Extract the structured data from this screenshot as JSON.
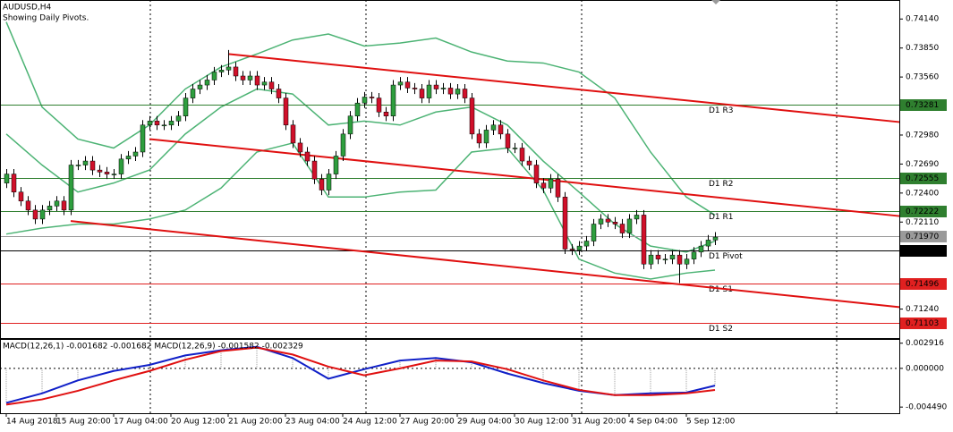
{
  "chart_data": [
    {
      "type": "candlestick",
      "title": "AUDUSD,H4",
      "subtitle": "Showing Daily Pivots.",
      "categories": [
        "14 Aug 2018",
        null,
        null,
        null,
        null,
        null,
        null,
        "15 Aug 20:00",
        null,
        null,
        null,
        null,
        null,
        null,
        null,
        "17 Aug 04:00",
        null,
        null,
        null,
        null,
        null,
        null,
        null,
        "20 Aug 12:00",
        null,
        null,
        null,
        null,
        null,
        null,
        null,
        "21 Aug 20:00",
        null,
        null,
        null,
        null,
        null,
        null,
        null,
        "23 Aug 04:00",
        null,
        null,
        null,
        null,
        null,
        null,
        null,
        "24 Aug 12:00",
        null,
        null,
        null,
        null,
        null,
        null,
        null,
        "27 Aug 20:00",
        null,
        null,
        null,
        null,
        null,
        null,
        null,
        "29 Aug 04:00",
        null,
        null,
        null,
        null,
        null,
        null,
        null,
        "30 Aug 12:00",
        null,
        null,
        null,
        null,
        null,
        null,
        null,
        "31 Aug 20:00",
        null,
        null,
        null,
        null,
        null,
        null,
        null,
        "4 Sep 04:00",
        null,
        null,
        null,
        null,
        null,
        null,
        null,
        "5 Sep 12:00",
        null,
        null,
        null,
        null
      ],
      "open": [
        0.725,
        0.7259,
        0.7241,
        0.7232,
        0.7223,
        0.7214,
        0.7223,
        0.7227,
        0.7232,
        0.7223,
        0.7268,
        0.7268,
        0.7272,
        0.7263,
        0.7261,
        0.7259,
        0.7259,
        0.7274,
        0.7277,
        0.7281,
        0.7308,
        0.7312,
        0.7308,
        0.7308,
        0.7312,
        0.7317,
        0.7335,
        0.7344,
        0.7348,
        0.7353,
        0.7361,
        0.7363,
        0.7366,
        0.7357,
        0.7353,
        0.7357,
        0.7348,
        0.7351,
        0.7344,
        0.7335,
        0.7308,
        0.729,
        0.7281,
        0.7272,
        0.7254,
        0.7243,
        0.7259,
        0.7277,
        0.7299,
        0.7317,
        0.733,
        0.7336,
        0.7335,
        0.7321,
        0.7317,
        0.7348,
        0.7351,
        0.7345,
        0.7344,
        0.7335,
        0.7348,
        0.7344,
        0.7345,
        0.7339,
        0.7344,
        0.7335,
        0.7299,
        0.729,
        0.7303,
        0.7308,
        0.7299,
        0.7285,
        0.7285,
        0.7272,
        0.7268,
        0.725,
        0.7245,
        0.7254,
        0.7236,
        0.7184,
        0.7183,
        0.7187,
        0.7192,
        0.7209,
        0.7214,
        0.7211,
        0.7209,
        0.72,
        0.7214,
        0.7218,
        0.7169,
        0.7178,
        0.7174,
        0.7174,
        0.7178,
        0.7169,
        0.7174,
        0.7181,
        0.7187,
        0.7193
      ],
      "high": [
        0.7264,
        0.7264,
        0.7246,
        0.7237,
        0.7228,
        0.7228,
        0.7232,
        0.7237,
        0.7237,
        0.7273,
        0.7273,
        0.7277,
        0.7277,
        0.7268,
        0.7266,
        0.7264,
        0.7279,
        0.7282,
        0.7286,
        0.7313,
        0.7317,
        0.7317,
        0.7313,
        0.7317,
        0.7322,
        0.734,
        0.7349,
        0.7353,
        0.7358,
        0.7366,
        0.7368,
        0.7383,
        0.7371,
        0.7362,
        0.7362,
        0.7362,
        0.7356,
        0.7356,
        0.7349,
        0.734,
        0.7313,
        0.7295,
        0.7286,
        0.7277,
        0.7259,
        0.7264,
        0.7282,
        0.7304,
        0.7322,
        0.7335,
        0.7341,
        0.7341,
        0.734,
        0.7326,
        0.7353,
        0.7356,
        0.7356,
        0.735,
        0.7349,
        0.7353,
        0.7353,
        0.735,
        0.735,
        0.7349,
        0.7349,
        0.734,
        0.7304,
        0.7308,
        0.7313,
        0.7313,
        0.7304,
        0.729,
        0.729,
        0.7277,
        0.7273,
        0.7255,
        0.7259,
        0.7259,
        0.7241,
        0.7189,
        0.7192,
        0.7197,
        0.7214,
        0.7219,
        0.7219,
        0.7216,
        0.7214,
        0.7219,
        0.7223,
        0.7223,
        0.7183,
        0.7183,
        0.7179,
        0.7183,
        0.7183,
        0.7179,
        0.7186,
        0.7192,
        0.7198,
        0.7201
      ],
      "low": [
        0.7245,
        0.7236,
        0.7227,
        0.7218,
        0.7209,
        0.7209,
        0.7218,
        0.7222,
        0.7218,
        0.7218,
        0.7263,
        0.7263,
        0.7258,
        0.7256,
        0.7254,
        0.7254,
        0.7254,
        0.7269,
        0.7272,
        0.7276,
        0.7303,
        0.7303,
        0.7303,
        0.7303,
        0.7307,
        0.7312,
        0.733,
        0.7339,
        0.7343,
        0.7348,
        0.7356,
        0.7358,
        0.7352,
        0.7348,
        0.7348,
        0.7343,
        0.7343,
        0.7339,
        0.733,
        0.7303,
        0.7285,
        0.7276,
        0.7267,
        0.7249,
        0.7238,
        0.7238,
        0.7254,
        0.7272,
        0.7294,
        0.7312,
        0.7325,
        0.733,
        0.7316,
        0.7312,
        0.7312,
        0.7343,
        0.734,
        0.7339,
        0.733,
        0.733,
        0.7339,
        0.7339,
        0.7334,
        0.7334,
        0.733,
        0.7294,
        0.7285,
        0.7285,
        0.7298,
        0.7294,
        0.728,
        0.728,
        0.7267,
        0.7263,
        0.7245,
        0.724,
        0.724,
        0.7231,
        0.7179,
        0.7178,
        0.7178,
        0.7182,
        0.7187,
        0.7204,
        0.7206,
        0.7204,
        0.7195,
        0.7195,
        0.7209,
        0.7164,
        0.7164,
        0.7169,
        0.7169,
        0.7169,
        0.715,
        0.7164,
        0.7169,
        0.7176,
        0.7182,
        0.7188
      ],
      "close": [
        0.7259,
        0.7241,
        0.7232,
        0.7223,
        0.7214,
        0.7223,
        0.7227,
        0.7232,
        0.7223,
        0.7268,
        0.7268,
        0.7272,
        0.7263,
        0.7261,
        0.7259,
        0.7259,
        0.7274,
        0.7277,
        0.7281,
        0.7308,
        0.7312,
        0.7308,
        0.7308,
        0.7312,
        0.7317,
        0.7335,
        0.7344,
        0.7348,
        0.7353,
        0.7361,
        0.7363,
        0.7366,
        0.7357,
        0.7353,
        0.7357,
        0.7348,
        0.7351,
        0.7344,
        0.7335,
        0.7308,
        0.729,
        0.7281,
        0.7272,
        0.7254,
        0.7243,
        0.7259,
        0.7277,
        0.7299,
        0.7317,
        0.733,
        0.7336,
        0.7335,
        0.7321,
        0.7317,
        0.7348,
        0.7351,
        0.7345,
        0.7344,
        0.7335,
        0.7348,
        0.7344,
        0.7345,
        0.7339,
        0.7344,
        0.7335,
        0.7299,
        0.729,
        0.7303,
        0.7308,
        0.7299,
        0.7285,
        0.7285,
        0.7272,
        0.7268,
        0.725,
        0.7245,
        0.7254,
        0.7236,
        0.7184,
        0.7183,
        0.7187,
        0.7192,
        0.7209,
        0.7214,
        0.7211,
        0.7209,
        0.72,
        0.7214,
        0.7218,
        0.7169,
        0.7178,
        0.7174,
        0.7174,
        0.7178,
        0.7169,
        0.7174,
        0.7181,
        0.7187,
        0.7193,
        0.7196
      ],
      "up_color": "#2e9e3e",
      "down_color": "#d0102a",
      "wick_color": "#000000",
      "ylim": [
        0.7095,
        0.7433
      ],
      "yticks": [
        {
          "value": 0.7414,
          "label": "0.74140"
        },
        {
          "value": 0.7385,
          "label": "0.73850"
        },
        {
          "value": 0.7356,
          "label": "0.73560"
        },
        {
          "value": 0.7298,
          "label": "0.72980"
        },
        {
          "value": 0.7269,
          "label": "0.72690"
        },
        {
          "value": 0.724,
          "label": "0.72400"
        },
        {
          "value": 0.7211,
          "label": "0.72110"
        },
        {
          "value": 0.7124,
          "label": "0.71240"
        }
      ],
      "bands": {
        "x": [
          0,
          5,
          10,
          15,
          20,
          25,
          30,
          35,
          40,
          45,
          50,
          55,
          60,
          65,
          70,
          75,
          80,
          85,
          90,
          95,
          99
        ],
        "series": [
          {
            "color": "#4cb374",
            "values": [
              0.7411,
              0.7326,
              0.7294,
              0.7285,
              0.7308,
              0.7344,
              0.7366,
              0.7379,
              0.7393,
              0.7399,
              0.7387,
              0.739,
              0.7395,
              0.7381,
              0.7372,
              0.737,
              0.7361,
              0.7335,
              0.7281,
              0.7236,
              0.7218
            ]
          },
          {
            "color": "#4cb374",
            "values": [
              0.7299,
              0.7268,
              0.7241,
              0.725,
              0.7263,
              0.7299,
              0.7326,
              0.7344,
              0.7339,
              0.7308,
              0.7312,
              0.7308,
              0.7321,
              0.7326,
              0.7308,
              0.7272,
              0.7241,
              0.7209,
              0.7187,
              0.7181,
              0.7192
            ]
          },
          {
            "color": "#4cb374",
            "values": [
              0.7199,
              0.7205,
              0.7209,
              0.7209,
              0.7214,
              0.7223,
              0.7245,
              0.7281,
              0.729,
              0.7236,
              0.7236,
              0.7241,
              0.7243,
              0.7281,
              0.7285,
              0.7243,
              0.7174,
              0.716,
              0.7154,
              0.716,
              0.7163
            ]
          }
        ]
      },
      "channels": [
        {
          "color": "#e01010",
          "x": [
            31,
            124.75
          ],
          "values": [
            0.7379,
            0.7311
          ]
        },
        {
          "color": "#e01010",
          "x": [
            20,
            124.75
          ],
          "values": [
            0.7294,
            0.7217
          ]
        },
        {
          "color": "#e01010",
          "x": [
            9,
            124.75
          ],
          "values": [
            0.7212,
            0.7126
          ]
        }
      ],
      "levels": [
        {
          "name": "D1 R3",
          "value": 0.73281,
          "color": "#2f7f2f"
        },
        {
          "name": "D1 R2",
          "value": 0.72555,
          "color": "#2f7f2f"
        },
        {
          "name": "D1 R1",
          "value": 0.72222,
          "color": "#2f7f2f"
        },
        {
          "name": "D1 Pivot",
          "value": 0.71829,
          "color": "#000000"
        },
        {
          "name": "D1 S1",
          "value": 0.71496,
          "color": "#e02020"
        },
        {
          "name": "D1 S2",
          "value": 0.71103,
          "color": "#e02020"
        }
      ],
      "price_line": {
        "value": 0.7197,
        "label": "0.71970",
        "color": "#9a9a9a"
      }
    },
    {
      "type": "line",
      "title": "MACD(12,26,1) -0.001682 -0.001682 MACD(12,26,9) -0.001582 -0.002329",
      "ylim": [
        -0.0052,
        0.0033
      ],
      "yticks": [
        0.002916,
        {
          "value": 0,
          "label": "0.000000"
        },
        {
          "value": -0.00449,
          "label": "-0.004490"
        }
      ],
      "x": [
        0,
        5,
        10,
        15,
        20,
        25,
        30,
        35,
        40,
        45,
        50,
        55,
        60,
        65,
        70,
        75,
        80,
        85,
        90,
        95,
        99
      ],
      "histogram_color": "#a0a0a0",
      "series": [
        {
          "color": "#1020c8",
          "values": [
            -0.004,
            -0.0029,
            -0.0014,
            -0.0003,
            0.0004,
            0.0015,
            0.0021,
            0.0025,
            0.0012,
            -0.0012,
            -0.0001,
            0.0009,
            0.0012,
            0.0007,
            -0.0006,
            -0.0017,
            -0.0026,
            -0.0031,
            -0.0029,
            -0.0028,
            -0.002
          ]
        },
        {
          "color": "#e01010",
          "values": [
            -0.0042,
            -0.0036,
            -0.0026,
            -0.0014,
            -0.0003,
            0.001,
            0.002,
            0.0024,
            0.0016,
            0.0002,
            -0.0008,
            0,
            0.0009,
            0.0008,
            -0.0001,
            -0.0014,
            -0.0025,
            -0.0031,
            -0.0031,
            -0.0029,
            -0.0025
          ]
        }
      ]
    }
  ]
}
